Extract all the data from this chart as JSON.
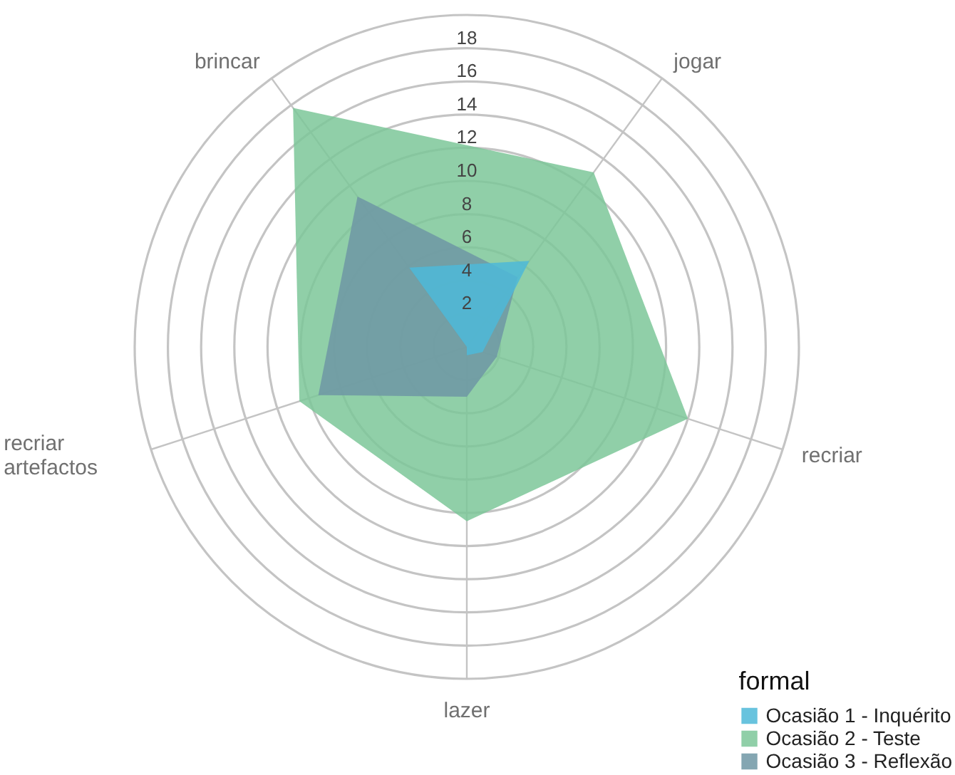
{
  "chart_data": {
    "type": "radar",
    "categories": [
      "jogar",
      "recriar",
      "lazer",
      "recriar\nartefactos",
      "brincar"
    ],
    "ylim": [
      0,
      20
    ],
    "yticks": [
      2,
      4,
      6,
      8,
      10,
      12,
      14,
      16,
      18
    ],
    "legend": "bottom right",
    "legend_title": "formal",
    "series": [
      {
        "name": "Ocasião 1 - Inquérito",
        "color": "#4db8d8",
        "values": [
          6.4,
          1,
          0.5,
          0,
          5.9
        ]
      },
      {
        "name": "Ocasião 2 - Teste",
        "color": "#7cc799",
        "values": [
          13,
          14,
          10.5,
          10.6,
          17.8
        ]
      },
      {
        "name": "Ocasião 3 - Reflexão",
        "color": "#6e96a4",
        "values": [
          5.2,
          1.9,
          3,
          9.4,
          11.2
        ]
      }
    ]
  }
}
